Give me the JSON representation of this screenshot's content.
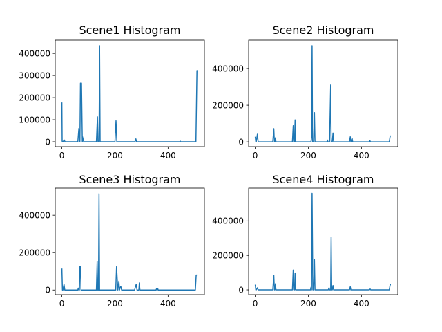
{
  "chart_data": [
    {
      "type": "line",
      "title": "Scene1 Histogram",
      "xlabel": "",
      "ylabel": "",
      "xlim": [
        -25,
        537
      ],
      "ylim": [
        -22000,
        460000
      ],
      "xticks": [
        0,
        200,
        400
      ],
      "xtick_labels": [
        "0",
        "200",
        "400"
      ],
      "yticks": [
        0,
        100000,
        200000,
        300000,
        400000
      ],
      "ytick_labels": [
        "0",
        "100000",
        "200000",
        "300000",
        "400000"
      ],
      "grid": false,
      "color": "#1f77b4",
      "series": [
        {
          "x": [
            0,
            1,
            5,
            8,
            12,
            60,
            64,
            68,
            70,
            74,
            77,
            78,
            82,
            130,
            134,
            136,
            140,
            142,
            144,
            148,
            200,
            204,
            207,
            210,
            275,
            279,
            281,
            284,
            445,
            446,
            447,
            505,
            509,
            511
          ],
          "values": [
            178000,
            2000,
            0,
            9000,
            0,
            0,
            60000,
            0,
            265000,
            265000,
            0,
            22000,
            0,
            0,
            113000,
            0,
            0,
            435000,
            0,
            0,
            0,
            95000,
            0,
            0,
            0,
            13000,
            0,
            0,
            0,
            3000,
            0,
            0,
            322000,
            322000
          ]
        }
      ]
    },
    {
      "type": "line",
      "title": "Scene2 Histogram",
      "xlabel": "",
      "ylabel": "",
      "xlim": [
        -25,
        537
      ],
      "ylim": [
        -26000,
        555000
      ],
      "xticks": [
        0,
        200,
        400
      ],
      "xtick_labels": [
        "0",
        "200",
        "400"
      ],
      "yticks": [
        0,
        200000,
        400000
      ],
      "ytick_labels": [
        "0",
        "200000",
        "400000"
      ],
      "grid": false,
      "color": "#1f77b4",
      "series": [
        {
          "x": [
            0,
            2,
            4,
            8,
            11,
            66,
            70,
            72,
            74,
            76,
            78,
            80,
            140,
            143,
            145,
            148,
            150,
            152,
            210,
            212,
            214,
            216,
            220,
            223,
            225,
            227,
            230,
            270,
            272,
            274,
            280,
            284,
            286,
            290,
            293,
            295,
            297,
            300,
            355,
            358,
            360,
            365,
            367,
            369,
            430,
            432,
            434,
            440,
            505,
            508,
            511
          ],
          "values": [
            28000,
            0,
            0,
            42000,
            0,
            0,
            72000,
            0,
            0,
            22000,
            0,
            0,
            0,
            88000,
            0,
            0,
            120000,
            0,
            0,
            25000,
            525000,
            0,
            0,
            160000,
            0,
            0,
            0,
            0,
            10000,
            0,
            0,
            310000,
            0,
            0,
            48000,
            0,
            0,
            0,
            0,
            28000,
            0,
            18000,
            0,
            0,
            0,
            7000,
            0,
            0,
            0,
            32000,
            32000
          ]
        }
      ]
    },
    {
      "type": "line",
      "title": "Scene3 Histogram",
      "xlabel": "",
      "ylabel": "",
      "xlim": [
        -25,
        537
      ],
      "ylim": [
        -25000,
        545000
      ],
      "xticks": [
        0,
        200,
        400
      ],
      "xtick_labels": [
        "0",
        "200",
        "400"
      ],
      "yticks": [
        0,
        200000,
        400000
      ],
      "ytick_labels": [
        "0",
        "200000",
        "400000"
      ],
      "grid": false,
      "color": "#1f77b4",
      "series": [
        {
          "x": [
            0,
            2,
            4,
            8,
            11,
            60,
            62,
            64,
            66,
            68,
            70,
            72,
            74,
            76,
            130,
            133,
            135,
            138,
            140,
            142,
            144,
            200,
            203,
            206,
            209,
            211,
            215,
            217,
            222,
            225,
            227,
            270,
            272,
            274,
            280,
            283,
            285,
            290,
            292,
            294,
            296,
            355,
            357,
            359,
            361,
            363,
            365,
            500,
            503,
            506,
            509
          ],
          "values": [
            115000,
            0,
            0,
            30000,
            0,
            0,
            10000,
            0,
            0,
            128000,
            128000,
            0,
            0,
            0,
            0,
            152000,
            0,
            0,
            515000,
            0,
            0,
            0,
            0,
            125000,
            50000,
            0,
            47000,
            0,
            20000,
            0,
            0,
            0,
            0,
            0,
            30000,
            0,
            0,
            0,
            38000,
            0,
            0,
            0,
            8000,
            0,
            8000,
            0,
            0,
            0,
            0,
            80000,
            80000
          ]
        }
      ]
    },
    {
      "type": "line",
      "title": "Scene4 Histogram",
      "xlabel": "",
      "ylabel": "",
      "xlim": [
        -25,
        537
      ],
      "ylim": [
        -28000,
        590000
      ],
      "xticks": [
        0,
        200,
        400
      ],
      "xtick_labels": [
        "0",
        "200",
        "400"
      ],
      "yticks": [
        0,
        200000,
        400000
      ],
      "ytick_labels": [
        "0",
        "200000",
        "400000"
      ],
      "grid": false,
      "color": "#1f77b4",
      "series": [
        {
          "x": [
            0,
            2,
            4,
            8,
            11,
            66,
            70,
            72,
            74,
            76,
            78,
            80,
            140,
            143,
            145,
            148,
            150,
            152,
            205,
            208,
            210,
            212,
            214,
            217,
            220,
            223,
            225,
            227,
            275,
            278,
            280,
            284,
            286,
            288,
            290,
            293,
            295,
            297,
            355,
            358,
            360,
            362,
            430,
            433,
            435,
            505,
            508,
            511
          ],
          "values": [
            30000,
            0,
            0,
            12000,
            0,
            0,
            85000,
            0,
            0,
            35000,
            0,
            0,
            0,
            115000,
            0,
            0,
            98000,
            0,
            0,
            0,
            15000,
            0,
            560000,
            0,
            0,
            175000,
            0,
            0,
            0,
            12000,
            0,
            0,
            305000,
            0,
            0,
            25000,
            0,
            0,
            0,
            18000,
            0,
            0,
            0,
            5000,
            0,
            0,
            30000,
            30000
          ]
        }
      ]
    }
  ]
}
